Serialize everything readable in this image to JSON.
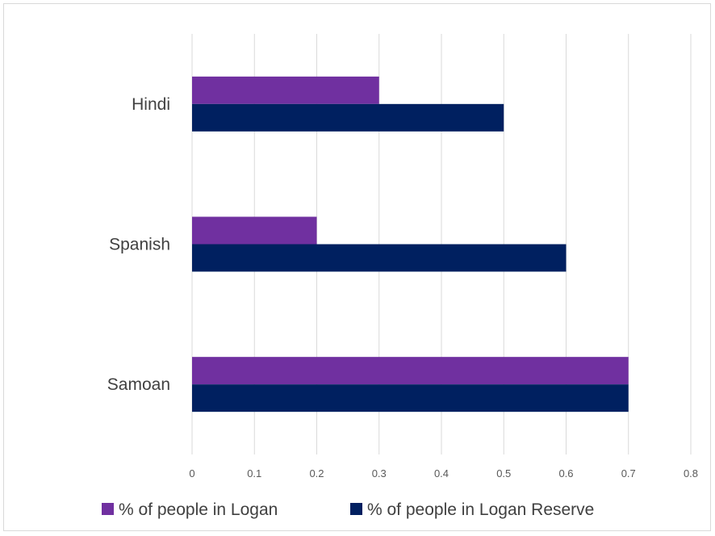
{
  "chart_data": {
    "type": "bar",
    "orientation": "horizontal",
    "title": "",
    "xlabel": "",
    "ylabel": "",
    "categories": [
      "Samoan",
      "Spanish",
      "Hindi"
    ],
    "series": [
      {
        "name": "% of people in Logan",
        "values": [
          0.7,
          0.2,
          0.3
        ],
        "color": "#7030a0"
      },
      {
        "name": "% of people in Logan Reserve",
        "values": [
          0.7,
          0.6,
          0.5
        ],
        "color": "#002060"
      }
    ],
    "xlim": [
      0,
      0.8
    ],
    "xticks": [
      "0",
      "0.1",
      "0.2",
      "0.3",
      "0.4",
      "0.5",
      "0.6",
      "0.7",
      "0.8"
    ],
    "grid": "vertical",
    "legend": "bottom"
  }
}
